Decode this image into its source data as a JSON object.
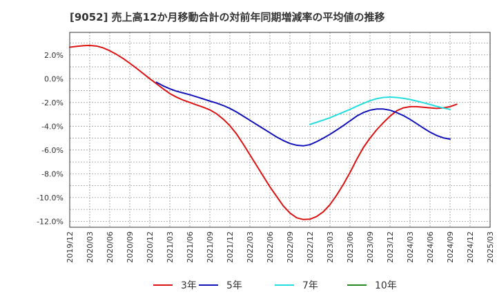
{
  "title": "[9052]  売上高12か月移動合計の対前年同期増減率の平均値の推移",
  "chart_data": {
    "type": "line",
    "title": "[9052]  売上高12か月移動合計の対前年同期増減率の平均値の推移",
    "xlabel": "",
    "ylabel": "",
    "x_ticks": [
      "2019/12",
      "2020/03",
      "2020/06",
      "2020/09",
      "2020/12",
      "2021/03",
      "2021/06",
      "2021/09",
      "2021/12",
      "2022/03",
      "2022/06",
      "2022/09",
      "2022/12",
      "2023/03",
      "2023/06",
      "2023/09",
      "2023/12",
      "2024/03",
      "2024/06",
      "2024/09",
      "2024/12",
      "2025/03"
    ],
    "y_ticks": [
      2,
      0,
      -2,
      -4,
      -6,
      -8,
      -10,
      -12
    ],
    "y_tick_labels": [
      "2.0%",
      "0.0%",
      "-2.0%",
      "-4.0%",
      "-6.0%",
      "-8.0%",
      "-10.0%",
      "-12.0%"
    ],
    "ylim": [
      -12.5,
      3.9
    ],
    "grid": true,
    "legend_position": "bottom",
    "series": [
      {
        "name": "3年",
        "color": "#dd1111",
        "points": [
          [
            "2019/12",
            2.65
          ],
          [
            "2020/01",
            2.72
          ],
          [
            "2020/02",
            2.78
          ],
          [
            "2020/03",
            2.8
          ],
          [
            "2020/04",
            2.75
          ],
          [
            "2020/05",
            2.6
          ],
          [
            "2020/06",
            2.35
          ],
          [
            "2020/07",
            2.05
          ],
          [
            "2020/08",
            1.7
          ],
          [
            "2020/09",
            1.3
          ],
          [
            "2020/10",
            0.88
          ],
          [
            "2020/11",
            0.44
          ],
          [
            "2020/12",
            0.0
          ],
          [
            "2021/01",
            -0.42
          ],
          [
            "2021/02",
            -0.85
          ],
          [
            "2021/03",
            -1.25
          ],
          [
            "2021/04",
            -1.55
          ],
          [
            "2021/05",
            -1.8
          ],
          [
            "2021/06",
            -2.0
          ],
          [
            "2021/07",
            -2.2
          ],
          [
            "2021/08",
            -2.4
          ],
          [
            "2021/09",
            -2.62
          ],
          [
            "2021/10",
            -2.95
          ],
          [
            "2021/11",
            -3.4
          ],
          [
            "2021/12",
            -3.95
          ],
          [
            "2022/01",
            -4.65
          ],
          [
            "2022/02",
            -5.5
          ],
          [
            "2022/03",
            -6.4
          ],
          [
            "2022/04",
            -7.3
          ],
          [
            "2022/05",
            -8.2
          ],
          [
            "2022/06",
            -9.1
          ],
          [
            "2022/07",
            -9.9
          ],
          [
            "2022/08",
            -10.7
          ],
          [
            "2022/09",
            -11.3
          ],
          [
            "2022/10",
            -11.7
          ],
          [
            "2022/11",
            -11.85
          ],
          [
            "2022/12",
            -11.82
          ],
          [
            "2023/01",
            -11.6
          ],
          [
            "2023/02",
            -11.2
          ],
          [
            "2023/03",
            -10.6
          ],
          [
            "2023/04",
            -9.8
          ],
          [
            "2023/05",
            -8.9
          ],
          [
            "2023/06",
            -7.9
          ],
          [
            "2023/07",
            -6.8
          ],
          [
            "2023/08",
            -5.8
          ],
          [
            "2023/09",
            -5.0
          ],
          [
            "2023/10",
            -4.3
          ],
          [
            "2023/11",
            -3.7
          ],
          [
            "2023/12",
            -3.15
          ],
          [
            "2024/01",
            -2.7
          ],
          [
            "2024/02",
            -2.45
          ],
          [
            "2024/03",
            -2.35
          ],
          [
            "2024/04",
            -2.35
          ],
          [
            "2024/05",
            -2.4
          ],
          [
            "2024/06",
            -2.45
          ],
          [
            "2024/07",
            -2.5
          ],
          [
            "2024/08",
            -2.45
          ],
          [
            "2024/09",
            -2.35
          ],
          [
            "2024/10",
            -2.15
          ]
        ]
      },
      {
        "name": "5年",
        "color": "#1111bb",
        "points": [
          [
            "2021/01",
            -0.3
          ],
          [
            "2021/02",
            -0.6
          ],
          [
            "2021/03",
            -0.85
          ],
          [
            "2021/04",
            -1.05
          ],
          [
            "2021/05",
            -1.2
          ],
          [
            "2021/06",
            -1.35
          ],
          [
            "2021/07",
            -1.52
          ],
          [
            "2021/08",
            -1.7
          ],
          [
            "2021/09",
            -1.88
          ],
          [
            "2021/10",
            -2.05
          ],
          [
            "2021/11",
            -2.25
          ],
          [
            "2021/12",
            -2.5
          ],
          [
            "2022/01",
            -2.8
          ],
          [
            "2022/02",
            -3.15
          ],
          [
            "2022/03",
            -3.5
          ],
          [
            "2022/04",
            -3.85
          ],
          [
            "2022/05",
            -4.2
          ],
          [
            "2022/06",
            -4.55
          ],
          [
            "2022/07",
            -4.9
          ],
          [
            "2022/08",
            -5.2
          ],
          [
            "2022/09",
            -5.45
          ],
          [
            "2022/10",
            -5.6
          ],
          [
            "2022/11",
            -5.65
          ],
          [
            "2022/12",
            -5.55
          ],
          [
            "2023/01",
            -5.3
          ],
          [
            "2023/02",
            -5.0
          ],
          [
            "2023/03",
            -4.68
          ],
          [
            "2023/04",
            -4.32
          ],
          [
            "2023/05",
            -3.95
          ],
          [
            "2023/06",
            -3.55
          ],
          [
            "2023/07",
            -3.15
          ],
          [
            "2023/08",
            -2.85
          ],
          [
            "2023/09",
            -2.65
          ],
          [
            "2023/10",
            -2.55
          ],
          [
            "2023/11",
            -2.55
          ],
          [
            "2023/12",
            -2.65
          ],
          [
            "2024/01",
            -2.85
          ],
          [
            "2024/02",
            -3.1
          ],
          [
            "2024/03",
            -3.42
          ],
          [
            "2024/04",
            -3.78
          ],
          [
            "2024/05",
            -4.15
          ],
          [
            "2024/06",
            -4.5
          ],
          [
            "2024/07",
            -4.78
          ],
          [
            "2024/08",
            -4.98
          ],
          [
            "2024/09",
            -5.08
          ]
        ]
      },
      {
        "name": "7年",
        "color": "#22dddd",
        "points": [
          [
            "2022/12",
            -3.85
          ],
          [
            "2023/01",
            -3.67
          ],
          [
            "2023/02",
            -3.48
          ],
          [
            "2023/03",
            -3.28
          ],
          [
            "2023/04",
            -3.05
          ],
          [
            "2023/05",
            -2.82
          ],
          [
            "2023/06",
            -2.58
          ],
          [
            "2023/07",
            -2.32
          ],
          [
            "2023/08",
            -2.08
          ],
          [
            "2023/09",
            -1.85
          ],
          [
            "2023/10",
            -1.68
          ],
          [
            "2023/11",
            -1.58
          ],
          [
            "2023/12",
            -1.55
          ],
          [
            "2024/01",
            -1.58
          ],
          [
            "2024/02",
            -1.65
          ],
          [
            "2024/03",
            -1.75
          ],
          [
            "2024/04",
            -1.88
          ],
          [
            "2024/05",
            -2.02
          ],
          [
            "2024/06",
            -2.17
          ],
          [
            "2024/07",
            -2.33
          ],
          [
            "2024/08",
            -2.47
          ],
          [
            "2024/09",
            -2.58
          ]
        ]
      },
      {
        "name": "10年",
        "color": "#228822",
        "points": []
      }
    ]
  }
}
